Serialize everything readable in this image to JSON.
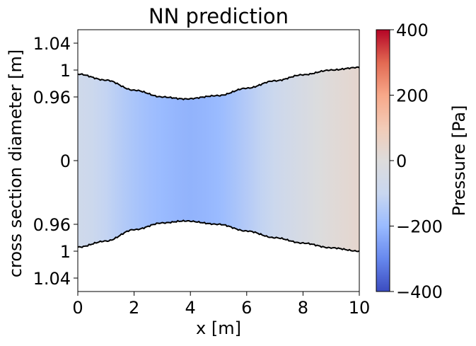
{
  "chart_data": {
    "type": "heatmap",
    "title": "NN prediction",
    "xlabel": "x [m]",
    "ylabel": "cross section diameter [m]",
    "colorbar_label": "Pressure [Pa]",
    "xlim": [
      0,
      10
    ],
    "x_ticks": [
      "0",
      "2",
      "4",
      "6",
      "8",
      "10"
    ],
    "y_ticks": [
      "1.04",
      "1",
      "0.96",
      "0",
      "0.96",
      "1",
      "1.04"
    ],
    "colorbar_ticks": [
      "400",
      "200",
      "0",
      "−200",
      "−400"
    ],
    "colorbar_range": [
      -400,
      400
    ],
    "colormap": "coolwarm",
    "colormap_stops": [
      "#3b4cc0",
      "#6788ee",
      "#9abbff",
      "#c9d7f0",
      "#dddcdc",
      "#f2cbb7",
      "#f7a889",
      "#e26952",
      "#b40426"
    ],
    "boundary_color": "#000000",
    "upper_wall_diameter": [
      {
        "x": 0.0,
        "d": 0.994
      },
      {
        "x": 1.0,
        "d": 0.985
      },
      {
        "x": 2.0,
        "d": 0.97
      },
      {
        "x": 3.0,
        "d": 0.96
      },
      {
        "x": 3.8,
        "d": 0.957
      },
      {
        "x": 5.0,
        "d": 0.962
      },
      {
        "x": 6.0,
        "d": 0.973
      },
      {
        "x": 7.0,
        "d": 0.984
      },
      {
        "x": 8.0,
        "d": 0.993
      },
      {
        "x": 9.0,
        "d": 1.0
      },
      {
        "x": 10.0,
        "d": 1.004
      }
    ],
    "lower_wall_diameter": [
      {
        "x": 0.0,
        "d": 0.994
      },
      {
        "x": 1.0,
        "d": 0.985
      },
      {
        "x": 2.0,
        "d": 0.968
      },
      {
        "x": 3.0,
        "d": 0.958
      },
      {
        "x": 3.8,
        "d": 0.955
      },
      {
        "x": 5.0,
        "d": 0.96
      },
      {
        "x": 6.0,
        "d": 0.97
      },
      {
        "x": 7.0,
        "d": 0.98
      },
      {
        "x": 8.0,
        "d": 0.988
      },
      {
        "x": 9.0,
        "d": 0.995
      },
      {
        "x": 10.0,
        "d": 1.0
      }
    ],
    "pressure_along_x": [
      {
        "x": 0.0,
        "p": -70
      },
      {
        "x": 0.5,
        "p": -85
      },
      {
        "x": 1.0,
        "p": -110
      },
      {
        "x": 1.5,
        "p": -140
      },
      {
        "x": 2.0,
        "p": -165
      },
      {
        "x": 2.5,
        "p": -185
      },
      {
        "x": 3.0,
        "p": -200
      },
      {
        "x": 3.5,
        "p": -210
      },
      {
        "x": 4.0,
        "p": -215
      },
      {
        "x": 4.5,
        "p": -210
      },
      {
        "x": 5.0,
        "p": -200
      },
      {
        "x": 5.5,
        "p": -175
      },
      {
        "x": 6.0,
        "p": -145
      },
      {
        "x": 6.5,
        "p": -115
      },
      {
        "x": 7.0,
        "p": -85
      },
      {
        "x": 7.5,
        "p": -60
      },
      {
        "x": 8.0,
        "p": -35
      },
      {
        "x": 8.5,
        "p": -10
      },
      {
        "x": 9.0,
        "p": 10
      },
      {
        "x": 9.5,
        "p": 25
      },
      {
        "x": 10.0,
        "p": 40
      }
    ]
  }
}
